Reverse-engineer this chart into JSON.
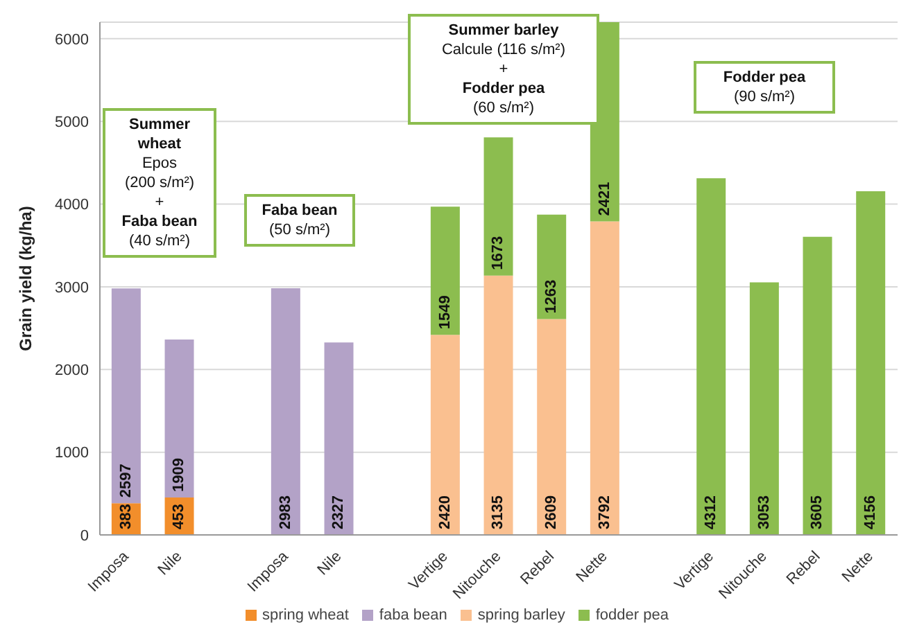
{
  "chart_data": {
    "type": "bar",
    "stacked": true,
    "ylabel": "Grain yield (kg/ha)",
    "categories": [
      "Imposa",
      "Nile",
      null,
      "Imposa",
      "Nile",
      null,
      "Vertige",
      "Nitouche",
      "Rebel",
      "Nette",
      null,
      "Vertige",
      "Nitouche",
      "Rebel",
      "Nette"
    ],
    "series": [
      {
        "name": "spring wheat",
        "color": "#f28e2b",
        "values": [
          383,
          453,
          null,
          null,
          null,
          null,
          null,
          null,
          null,
          null,
          null,
          null,
          null,
          null,
          null
        ]
      },
      {
        "name": "faba bean",
        "color": "#b3a2c7",
        "values": [
          2597,
          1909,
          null,
          2983,
          2327,
          null,
          null,
          null,
          null,
          null,
          null,
          null,
          null,
          null,
          null
        ]
      },
      {
        "name": "spring barley",
        "color": "#fac090",
        "values": [
          null,
          null,
          null,
          null,
          null,
          null,
          2420,
          3135,
          2609,
          3792,
          null,
          null,
          null,
          null,
          null
        ]
      },
      {
        "name": "fodder pea",
        "color": "#8cbd4f",
        "values": [
          null,
          null,
          null,
          null,
          null,
          null,
          1549,
          1673,
          1263,
          2421,
          null,
          4312,
          3053,
          3605,
          4156
        ]
      }
    ],
    "ylim": [
      0,
      6200
    ],
    "yticks": [
      0,
      1000,
      2000,
      3000,
      4000,
      5000,
      6000
    ],
    "grid": "y",
    "legend": "bottom",
    "data_labels": true,
    "annotations": [
      "Summer wheat\nEpos\n(200 s/m²)\n+\nFaba bean\n(40 s/m²)",
      "Faba bean\n(50 s/m²)",
      "Summer barley\nCalcule (116 s/m²)\n+\nFodder pea\n(60 s/m²)",
      "Fodder pea\n(90 s/m²)"
    ]
  }
}
